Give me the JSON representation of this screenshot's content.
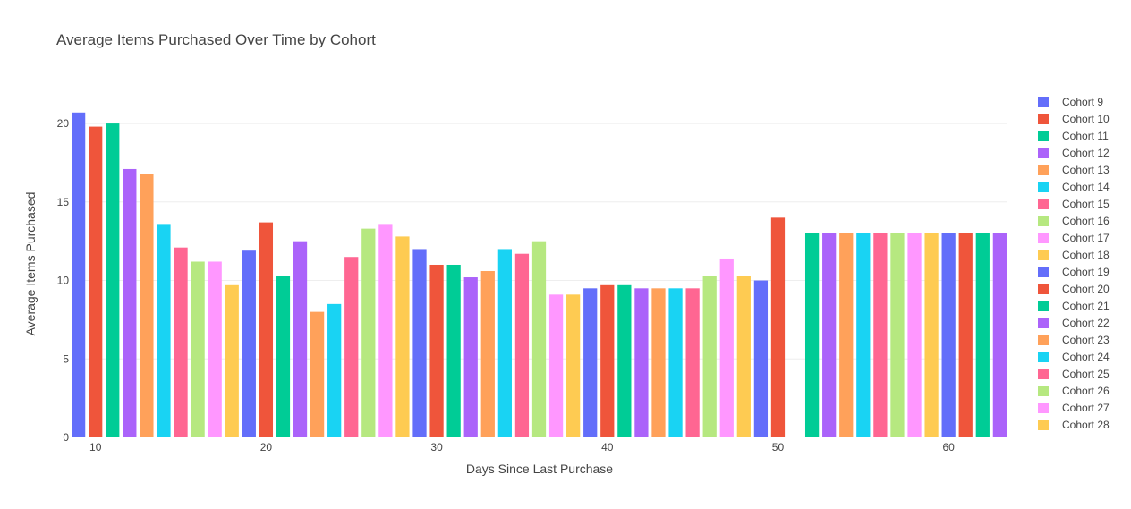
{
  "chart_data": {
    "type": "bar",
    "title": "Average Items Purchased Over Time by Cohort",
    "xlabel": "Days Since Last Purchase",
    "ylabel": "Average Items Purchased",
    "xlim": [
      8.6,
      63.4
    ],
    "ylim": [
      0,
      21.6
    ],
    "x_ticks": [
      10,
      20,
      30,
      40,
      50,
      60
    ],
    "y_ticks": [
      0,
      5,
      10,
      15,
      20
    ],
    "grid": true,
    "legend_position": "right",
    "palette": [
      "#636efa",
      "#EF553B",
      "#00cc96",
      "#ab63fa",
      "#FFA15A",
      "#19d3f3",
      "#FF6692",
      "#B6E880",
      "#FF97FF",
      "#FECB52"
    ],
    "series": [
      {
        "name": "Cohort 9",
        "x": 9,
        "value": 20.7
      },
      {
        "name": "Cohort 10",
        "x": 10,
        "value": 19.8
      },
      {
        "name": "Cohort 11",
        "x": 11,
        "value": 20.0
      },
      {
        "name": "Cohort 12",
        "x": 12,
        "value": 17.1
      },
      {
        "name": "Cohort 13",
        "x": 13,
        "value": 16.8
      },
      {
        "name": "Cohort 14",
        "x": 14,
        "value": 13.6
      },
      {
        "name": "Cohort 15",
        "x": 15,
        "value": 12.1
      },
      {
        "name": "Cohort 16",
        "x": 16,
        "value": 11.2
      },
      {
        "name": "Cohort 17",
        "x": 17,
        "value": 11.2
      },
      {
        "name": "Cohort 18",
        "x": 18,
        "value": 9.7
      },
      {
        "name": "Cohort 19",
        "x": 19,
        "value": 11.9
      },
      {
        "name": "Cohort 20",
        "x": 20,
        "value": 13.7
      },
      {
        "name": "Cohort 21",
        "x": 21,
        "value": 10.3
      },
      {
        "name": "Cohort 22",
        "x": 22,
        "value": 12.5
      },
      {
        "name": "Cohort 23",
        "x": 23,
        "value": 8.0
      },
      {
        "name": "Cohort 24",
        "x": 24,
        "value": 8.5
      },
      {
        "name": "Cohort 25",
        "x": 25,
        "value": 11.5
      },
      {
        "name": "Cohort 26",
        "x": 26,
        "value": 13.3
      },
      {
        "name": "Cohort 27",
        "x": 27,
        "value": 13.6
      },
      {
        "name": "Cohort 28",
        "x": 28,
        "value": 12.8
      },
      {
        "x": 29,
        "value": 12.0
      },
      {
        "x": 30,
        "value": 11.0
      },
      {
        "x": 31,
        "value": 11.0
      },
      {
        "x": 32,
        "value": 10.2
      },
      {
        "x": 33,
        "value": 10.6
      },
      {
        "x": 34,
        "value": 12.0
      },
      {
        "x": 35,
        "value": 11.7
      },
      {
        "x": 36,
        "value": 12.5
      },
      {
        "x": 37,
        "value": 9.1
      },
      {
        "x": 38,
        "value": 9.1
      },
      {
        "x": 39,
        "value": 9.5
      },
      {
        "x": 40,
        "value": 9.7
      },
      {
        "x": 41,
        "value": 9.7
      },
      {
        "x": 42,
        "value": 9.5
      },
      {
        "x": 43,
        "value": 9.5
      },
      {
        "x": 44,
        "value": 9.5
      },
      {
        "x": 45,
        "value": 9.5
      },
      {
        "x": 46,
        "value": 10.3
      },
      {
        "x": 47,
        "value": 11.4
      },
      {
        "x": 48,
        "value": 10.3
      },
      {
        "x": 49,
        "value": 10.0
      },
      {
        "x": 50,
        "value": 14.0
      },
      {
        "x": 52,
        "value": 13.0
      },
      {
        "x": 53,
        "value": 13.0
      },
      {
        "x": 54,
        "value": 13.0
      },
      {
        "x": 55,
        "value": 13.0
      },
      {
        "x": 56,
        "value": 13.0
      },
      {
        "x": 57,
        "value": 13.0
      },
      {
        "x": 58,
        "value": 13.0
      },
      {
        "x": 59,
        "value": 13.0
      },
      {
        "x": 60,
        "value": 13.0
      },
      {
        "x": 61,
        "value": 13.0
      },
      {
        "x": 62,
        "value": 13.0
      },
      {
        "x": 63,
        "value": 13.0
      }
    ]
  }
}
